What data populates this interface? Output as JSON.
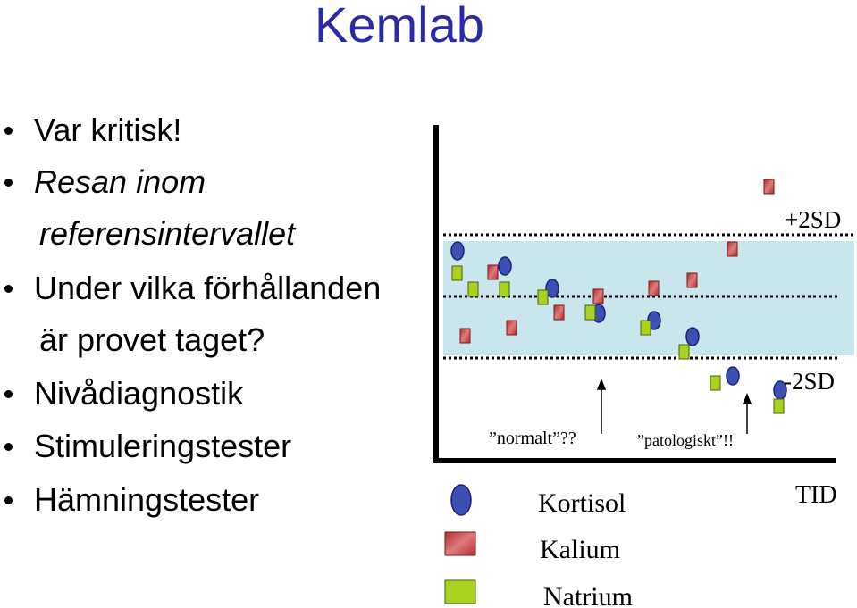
{
  "title": "Kemlab",
  "bullets": [
    {
      "text": "Var kritisk!"
    },
    {
      "text": "Resan inom",
      "cont": "referensintervallet",
      "italic": true
    },
    {
      "text": "Under vilka förhållanden",
      "cont": "är provet taget?"
    },
    {
      "text": "Nivådiagnostik"
    },
    {
      "text": "Stimuleringstester"
    },
    {
      "text": "Hämningstester"
    }
  ],
  "diagram": {
    "upper_label": "+2SD",
    "lower_label": "-2SD",
    "time_label": "TID",
    "normal_label": "”normalt”??",
    "patho_label": "”patologiskt”!!",
    "band_color": "#c8e6ec",
    "legend": [
      {
        "label": "Kortisol",
        "shape": "ellipse",
        "color": "#3b4fb5"
      },
      {
        "label": "Kalium",
        "shape": "square",
        "color": "#c94a4a"
      },
      {
        "label": "Natrium",
        "shape": "square",
        "color": "#a8d21e"
      }
    ]
  }
}
